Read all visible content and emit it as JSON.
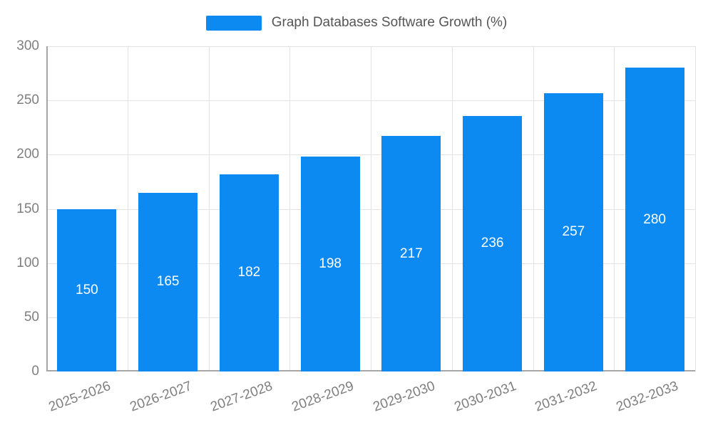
{
  "colors": {
    "bar": "#0d8af2",
    "bar_label": "#ffffff",
    "tick_label": "#7f7f7f",
    "legend_text": "#555555",
    "grid": "#e3e3e3",
    "axis": "#a6a6a6"
  },
  "legend": {
    "label": "Graph Databases Software Growth (%)"
  },
  "chart_data": {
    "type": "bar",
    "title": "Graph Databases Software Growth (%)",
    "categories": [
      "2025-2026",
      "2026-2027",
      "2027-2028",
      "2028-2029",
      "2029-2030",
      "2030-2031",
      "2031-2032",
      "2032-2033"
    ],
    "values": [
      150,
      165,
      182,
      198,
      217,
      236,
      257,
      280
    ],
    "xlabel": "",
    "ylabel": "",
    "ylim": [
      0,
      300
    ],
    "yticks": [
      0,
      50,
      100,
      150,
      200,
      250,
      300
    ],
    "grid": true,
    "legend_position": "top",
    "bar_labels_inside": true
  }
}
